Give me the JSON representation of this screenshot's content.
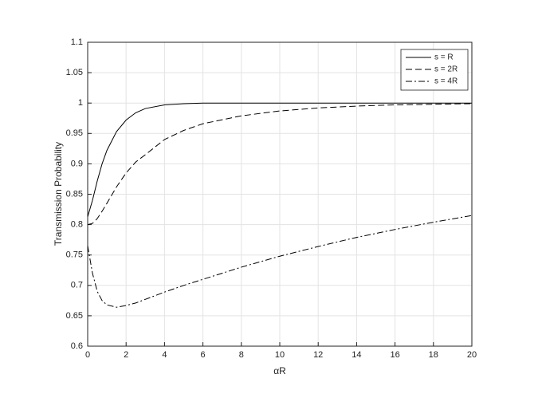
{
  "chart_data": {
    "type": "line",
    "xlabel": "αR",
    "ylabel": "Transmission Probability",
    "x": [
      0,
      0.25,
      0.5,
      0.75,
      1,
      1.5,
      2,
      2.5,
      3,
      4,
      5,
      6,
      8,
      10,
      12,
      14,
      16,
      18,
      20
    ],
    "series": [
      {
        "name": "s = R",
        "color": "#000000",
        "dash": "solid",
        "values": [
          0.813,
          0.84,
          0.872,
          0.9,
          0.922,
          0.953,
          0.972,
          0.984,
          0.991,
          0.997,
          0.999,
          1,
          1,
          1,
          1,
          1,
          1,
          1,
          1
        ]
      },
      {
        "name": "s = 2R",
        "color": "#000000",
        "dash": "dashed",
        "values": [
          0.8,
          0.802,
          0.81,
          0.822,
          0.835,
          0.862,
          0.885,
          0.903,
          0.915,
          0.94,
          0.955,
          0.966,
          0.979,
          0.987,
          0.992,
          0.995,
          0.997,
          0.998,
          0.999
        ]
      },
      {
        "name": "s = 4R",
        "color": "#000000",
        "dash": "dashdot",
        "values": [
          0.765,
          0.72,
          0.69,
          0.675,
          0.668,
          0.664,
          0.667,
          0.671,
          0.677,
          0.689,
          0.7,
          0.71,
          0.73,
          0.748,
          0.764,
          0.779,
          0.792,
          0.804,
          0.815
        ]
      }
    ],
    "xlim": [
      0,
      20
    ],
    "xticks": [
      0,
      2,
      4,
      6,
      8,
      10,
      12,
      14,
      16,
      18,
      20
    ],
    "ylim": [
      0.6,
      1.1
    ],
    "yticks": [
      0.6,
      0.65,
      0.7,
      0.75,
      0.8,
      0.85,
      0.9,
      0.95,
      1,
      1.05,
      1.1
    ],
    "grid": true,
    "legend": "top-right"
  }
}
